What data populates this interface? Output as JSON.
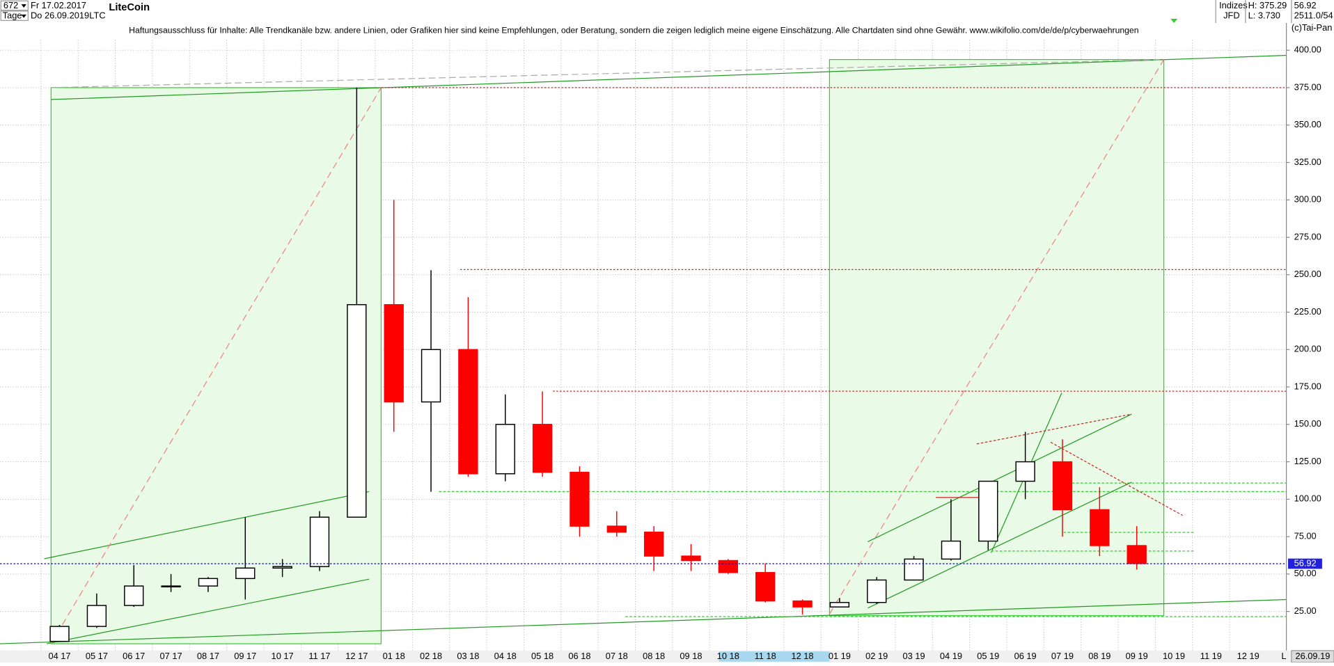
{
  "header": {
    "count": "672",
    "start": "Fr 17.02.2017",
    "unit": "Tage",
    "end": "Do 26.09.2019",
    "symbol": "LTC",
    "exchange_group": "Indizes",
    "high": "H: 375.29",
    "last": "56.92",
    "broker": "JFD",
    "low": "L: 3.730",
    "info": "2511.0/54",
    "copyright": "(c)Tai-Pan",
    "date_box": "26.09.19",
    "scale_mode": "L"
  },
  "chart_data": {
    "type": "candlestick",
    "title": "LiteCoin",
    "subtitle": "Haftungsausschluss für Inhalte: Alle Trendkanäle bzw. andere Linien, oder Grafiken hier sind keine Empfehlungen, oder Beratung, sondern die zeigen lediglich meine eigene Einschätzung. Alle Chartdaten sind ohne Gewähr.  www.wikifolio.com/de/de/p/cyberwaehrungen",
    "categories": [
      "04 17",
      "05 17",
      "06 17",
      "07 17",
      "08 17",
      "09 17",
      "10 17",
      "11 17",
      "12 17",
      "01 18",
      "02 18",
      "03 18",
      "04 18",
      "05 18",
      "06 18",
      "07 18",
      "08 18",
      "09 18",
      "10 18",
      "11 18",
      "12 18",
      "01 19",
      "02 19",
      "03 19",
      "04 19",
      "05 19",
      "06 19",
      "07 19",
      "08 19",
      "09 19",
      "10 19",
      "11 19",
      "12 19"
    ],
    "open": [
      5,
      15,
      29,
      42,
      42,
      47,
      54,
      55,
      88,
      230,
      165,
      200,
      117,
      150,
      118,
      82,
      78,
      62,
      59,
      51,
      32,
      28,
      31,
      46,
      60,
      72,
      112,
      125,
      93,
      69,
      null,
      null,
      null
    ],
    "high": [
      16,
      37,
      56,
      50,
      48,
      88,
      60,
      92,
      375,
      300,
      253,
      235,
      170,
      172,
      122,
      92,
      82,
      70,
      60,
      57,
      33,
      34,
      48,
      62,
      100,
      112,
      145,
      140,
      108,
      82,
      null,
      null,
      null
    ],
    "low": [
      5,
      14,
      28,
      38,
      38,
      33,
      48,
      52,
      88,
      145,
      105,
      115,
      112,
      115,
      75,
      75,
      52,
      52,
      50,
      31,
      23,
      28,
      30,
      46,
      59,
      66,
      100,
      75,
      62,
      53,
      null,
      null,
      null
    ],
    "close": [
      15,
      29,
      42,
      42,
      47,
      54,
      55,
      88,
      230,
      165,
      200,
      117,
      150,
      118,
      82,
      78,
      62,
      59,
      51,
      32,
      28,
      31,
      46,
      60,
      72,
      112,
      125,
      93,
      69,
      57,
      null,
      null,
      null
    ],
    "up_color": "#000000",
    "down_color": "#ff0000",
    "ylim": [
      3.4,
      418.2
    ],
    "yticks": [
      {
        "value": 25,
        "label": "25.00"
      },
      {
        "value": 50,
        "label": "50.00"
      },
      {
        "value": 75,
        "label": "75.00"
      },
      {
        "value": 100,
        "label": "100.00"
      },
      {
        "value": 125,
        "label": "125.00"
      },
      {
        "value": 150,
        "label": "150.00"
      },
      {
        "value": 175,
        "label": "175.00"
      },
      {
        "value": 200,
        "label": "200.00"
      },
      {
        "value": 225,
        "label": "225.00"
      },
      {
        "value": 250,
        "label": "250.00"
      },
      {
        "value": 275,
        "label": "275.00"
      },
      {
        "value": 300,
        "label": "300.00"
      },
      {
        "value": 325,
        "label": "325.00"
      },
      {
        "value": 350,
        "label": "350.00"
      },
      {
        "value": 375,
        "label": "375.00"
      },
      {
        "value": 400,
        "label": "400.00"
      }
    ],
    "last_price": {
      "value": 56.92,
      "label": "56.92"
    },
    "grid": true
  }
}
